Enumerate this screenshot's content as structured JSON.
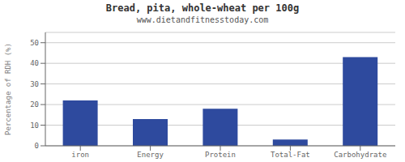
{
  "chart_data": {
    "type": "bar",
    "title": "Bread, pita, whole-wheat per 100g",
    "subtitle": "www.dietandfitnesstoday.com",
    "categories": [
      "iron",
      "Energy",
      "Protein",
      "Total-Fat",
      "Carbohydrate"
    ],
    "values": [
      22,
      13,
      18,
      3,
      43
    ],
    "color": "#2e4a9e",
    "ylabel": "Percentage of RDH (%)",
    "ylim": [
      0,
      55
    ],
    "yticks": [
      0,
      10,
      20,
      30,
      40,
      50
    ],
    "grid": true
  }
}
